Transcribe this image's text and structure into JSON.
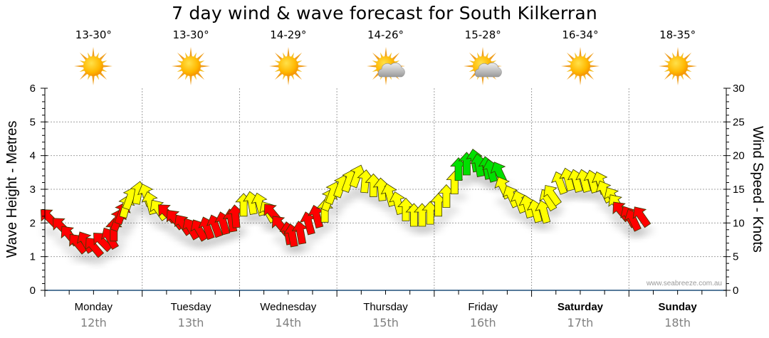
{
  "title": "7 day wind & wave forecast for South Kilkerran",
  "days": [
    {
      "name": "Monday",
      "date": "12th",
      "temp": "13-30°",
      "icon": "sunny-icon",
      "weekend": false
    },
    {
      "name": "Tuesday",
      "date": "13th",
      "temp": "13-30°",
      "icon": "sunny-icon",
      "weekend": false
    },
    {
      "name": "Wednesday",
      "date": "14th",
      "temp": "14-29°",
      "icon": "sunny-icon",
      "weekend": false
    },
    {
      "name": "Thursday",
      "date": "15th",
      "temp": "14-26°",
      "icon": "partly-cloudy-icon",
      "weekend": false
    },
    {
      "name": "Friday",
      "date": "16th",
      "temp": "15-28°",
      "icon": "partly-cloudy-icon",
      "weekend": false
    },
    {
      "name": "Saturday",
      "date": "17th",
      "temp": "16-34°",
      "icon": "sunny-icon",
      "weekend": true
    },
    {
      "name": "Sunday",
      "date": "18th",
      "temp": "18-35°",
      "icon": "sunny-icon",
      "weekend": true
    }
  ],
  "watermark": "www.seabreeze.com.au",
  "colors": {
    "red": "#ff0000",
    "yellow": "#ffff00",
    "green": "#00e000",
    "axis": "#1f4e79",
    "grid": "#a0a0a0"
  },
  "chart_data": {
    "type": "scatter",
    "title": "7 day wind & wave forecast for South Kilkerran",
    "ylabel_left": "Wave Height - Metres",
    "ylabel_right": "Wind Speed - Knots",
    "ylim_left": [
      0,
      6
    ],
    "ylim_right": [
      0,
      30
    ],
    "yticks_left": [
      "0",
      "1",
      "2",
      "3",
      "4",
      "5",
      "6"
    ],
    "yticks_right": [
      "0",
      "5",
      "10",
      "15",
      "20",
      "25",
      "30"
    ],
    "grid": true,
    "x_unit": "hours from Monday 00:00",
    "xlim": [
      0,
      168
    ],
    "series": [
      {
        "name": "Wind",
        "points": [
          {
            "h": 1,
            "kn": 10.8,
            "dir": 135,
            "c": "red"
          },
          {
            "h": 4,
            "kn": 9.5,
            "dir": 135,
            "c": "red"
          },
          {
            "h": 6,
            "kn": 8.2,
            "dir": 140,
            "c": "red"
          },
          {
            "h": 8,
            "kn": 7.0,
            "dir": 140,
            "c": "red"
          },
          {
            "h": 10,
            "kn": 7.2,
            "dir": 150,
            "c": "red"
          },
          {
            "h": 12,
            "kn": 6.5,
            "dir": 140,
            "c": "red"
          },
          {
            "h": 14,
            "kn": 7.3,
            "dir": 135,
            "c": "red"
          },
          {
            "h": 16,
            "kn": 7.8,
            "dir": 150,
            "c": "red"
          },
          {
            "h": 17,
            "kn": 9.0,
            "dir": 180,
            "c": "red"
          },
          {
            "h": 18,
            "kn": 10.5,
            "dir": 200,
            "c": "red"
          },
          {
            "h": 19,
            "kn": 11.5,
            "dir": 200,
            "c": "red"
          },
          {
            "h": 20,
            "kn": 12.5,
            "dir": 195,
            "c": "yellow"
          },
          {
            "h": 21,
            "kn": 13.7,
            "dir": 200,
            "c": "yellow"
          },
          {
            "h": 23,
            "kn": 14.5,
            "dir": 190,
            "c": "yellow"
          },
          {
            "h": 25,
            "kn": 14.2,
            "dir": 160,
            "c": "yellow"
          },
          {
            "h": 26,
            "kn": 13.0,
            "dir": 165,
            "c": "yellow"
          },
          {
            "h": 28,
            "kn": 12.0,
            "dir": 145,
            "c": "yellow"
          },
          {
            "h": 30,
            "kn": 11.5,
            "dir": 135,
            "c": "red"
          },
          {
            "h": 32,
            "kn": 10.6,
            "dir": 140,
            "c": "red"
          },
          {
            "h": 34,
            "kn": 9.8,
            "dir": 145,
            "c": "red"
          },
          {
            "h": 36,
            "kn": 9.2,
            "dir": 150,
            "c": "red"
          },
          {
            "h": 38,
            "kn": 9.0,
            "dir": 150,
            "c": "red"
          },
          {
            "h": 40,
            "kn": 9.3,
            "dir": 160,
            "c": "red"
          },
          {
            "h": 42,
            "kn": 9.6,
            "dir": 160,
            "c": "red"
          },
          {
            "h": 44,
            "kn": 10.0,
            "dir": 165,
            "c": "red"
          },
          {
            "h": 46,
            "kn": 10.4,
            "dir": 170,
            "c": "red"
          },
          {
            "h": 47,
            "kn": 11.0,
            "dir": 175,
            "c": "red"
          },
          {
            "h": 49,
            "kn": 12.7,
            "dir": 180,
            "c": "yellow"
          },
          {
            "h": 51,
            "kn": 13.0,
            "dir": 170,
            "c": "yellow"
          },
          {
            "h": 53,
            "kn": 12.8,
            "dir": 165,
            "c": "yellow"
          },
          {
            "h": 55,
            "kn": 11.7,
            "dir": 150,
            "c": "yellow"
          },
          {
            "h": 56,
            "kn": 11.5,
            "dir": 140,
            "c": "red"
          },
          {
            "h": 58,
            "kn": 9.7,
            "dir": 140,
            "c": "red"
          },
          {
            "h": 60,
            "kn": 8.5,
            "dir": 170,
            "c": "red"
          },
          {
            "h": 61,
            "kn": 8.2,
            "dir": 170,
            "c": "red"
          },
          {
            "h": 63,
            "kn": 8.6,
            "dir": 170,
            "c": "red"
          },
          {
            "h": 65,
            "kn": 10.0,
            "dir": 165,
            "c": "red"
          },
          {
            "h": 67,
            "kn": 11.0,
            "dir": 165,
            "c": "red"
          },
          {
            "h": 69,
            "kn": 11.8,
            "dir": 180,
            "c": "yellow"
          },
          {
            "h": 70,
            "kn": 13.5,
            "dir": 200,
            "c": "yellow"
          },
          {
            "h": 71,
            "kn": 14.5,
            "dir": 200,
            "c": "yellow"
          },
          {
            "h": 73,
            "kn": 15.5,
            "dir": 200,
            "c": "yellow"
          },
          {
            "h": 75,
            "kn": 16.3,
            "dir": 200,
            "c": "yellow"
          },
          {
            "h": 77,
            "kn": 17.0,
            "dir": 200,
            "c": "yellow"
          },
          {
            "h": 79,
            "kn": 16.2,
            "dir": 185,
            "c": "yellow"
          },
          {
            "h": 81,
            "kn": 15.6,
            "dir": 180,
            "c": "yellow"
          },
          {
            "h": 83,
            "kn": 15.0,
            "dir": 175,
            "c": "yellow"
          },
          {
            "h": 85,
            "kn": 14.2,
            "dir": 165,
            "c": "yellow"
          },
          {
            "h": 87,
            "kn": 13.0,
            "dir": 165,
            "c": "yellow"
          },
          {
            "h": 89,
            "kn": 12.0,
            "dir": 180,
            "c": "yellow"
          },
          {
            "h": 91,
            "kn": 11.2,
            "dir": 180,
            "c": "yellow"
          },
          {
            "h": 93,
            "kn": 11.2,
            "dir": 180,
            "c": "yellow"
          },
          {
            "h": 95,
            "kn": 11.5,
            "dir": 180,
            "c": "yellow"
          },
          {
            "h": 97,
            "kn": 12.7,
            "dir": 180,
            "c": "yellow"
          },
          {
            "h": 99,
            "kn": 14.0,
            "dir": 180,
            "c": "yellow"
          },
          {
            "h": 101,
            "kn": 16.0,
            "dir": 180,
            "c": "yellow"
          },
          {
            "h": 102,
            "kn": 18.0,
            "dir": 180,
            "c": "green"
          },
          {
            "h": 104,
            "kn": 18.8,
            "dir": 180,
            "c": "green"
          },
          {
            "h": 106,
            "kn": 19.3,
            "dir": 170,
            "c": "green"
          },
          {
            "h": 107,
            "kn": 18.6,
            "dir": 170,
            "c": "green"
          },
          {
            "h": 109,
            "kn": 18.2,
            "dir": 170,
            "c": "green"
          },
          {
            "h": 110,
            "kn": 17.8,
            "dir": 165,
            "c": "green"
          },
          {
            "h": 112,
            "kn": 17.5,
            "dir": 155,
            "c": "green"
          },
          {
            "h": 113,
            "kn": 15.3,
            "dir": 155,
            "c": "yellow"
          },
          {
            "h": 115,
            "kn": 14.0,
            "dir": 155,
            "c": "yellow"
          },
          {
            "h": 117,
            "kn": 13.2,
            "dir": 160,
            "c": "yellow"
          },
          {
            "h": 119,
            "kn": 12.5,
            "dir": 165,
            "c": "yellow"
          },
          {
            "h": 121,
            "kn": 11.8,
            "dir": 165,
            "c": "yellow"
          },
          {
            "h": 123,
            "kn": 11.7,
            "dir": 165,
            "c": "yellow"
          },
          {
            "h": 124,
            "kn": 13.5,
            "dir": 150,
            "c": "yellow"
          },
          {
            "h": 125,
            "kn": 14.2,
            "dir": 145,
            "c": "yellow"
          },
          {
            "h": 127,
            "kn": 16.0,
            "dir": 160,
            "c": "yellow"
          },
          {
            "h": 129,
            "kn": 16.5,
            "dir": 165,
            "c": "yellow"
          },
          {
            "h": 131,
            "kn": 16.3,
            "dir": 165,
            "c": "yellow"
          },
          {
            "h": 133,
            "kn": 16.3,
            "dir": 165,
            "c": "yellow"
          },
          {
            "h": 135,
            "kn": 16.2,
            "dir": 165,
            "c": "yellow"
          },
          {
            "h": 137,
            "kn": 16.0,
            "dir": 160,
            "c": "yellow"
          },
          {
            "h": 138,
            "kn": 14.7,
            "dir": 155,
            "c": "yellow"
          },
          {
            "h": 140,
            "kn": 13.8,
            "dir": 150,
            "c": "yellow"
          },
          {
            "h": 141,
            "kn": 12.8,
            "dir": 145,
            "c": "yellow"
          },
          {
            "h": 142,
            "kn": 11.8,
            "dir": 140,
            "c": "red"
          },
          {
            "h": 144,
            "kn": 11.0,
            "dir": 150,
            "c": "red"
          },
          {
            "h": 145,
            "kn": 10.5,
            "dir": 155,
            "c": "red"
          },
          {
            "h": 147,
            "kn": 11.0,
            "dir": 145,
            "c": "red"
          }
        ]
      }
    ]
  }
}
